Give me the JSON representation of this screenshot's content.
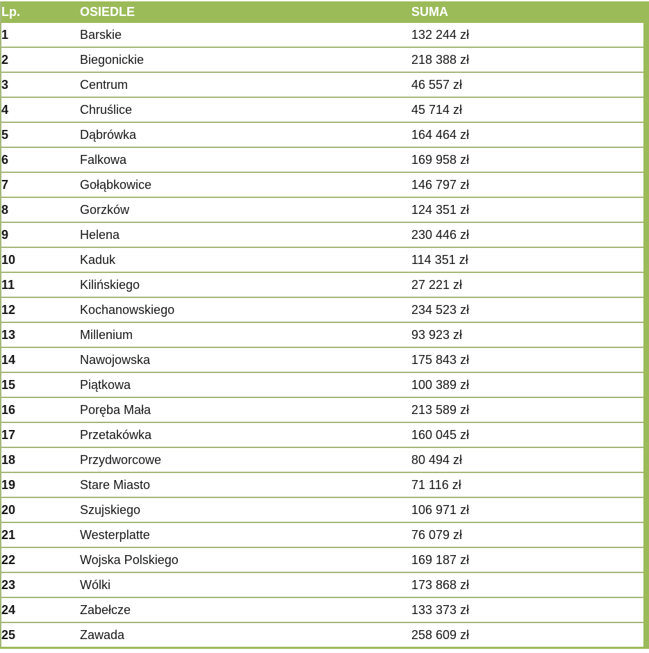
{
  "colors": {
    "header_bg": "#9bbb59",
    "header_text": "#ffffff",
    "row_separator": "#a5b87a",
    "right_bar": "#9bbb59",
    "cell_text": "#161616",
    "background": "#ffffff"
  },
  "table": {
    "columns": [
      "Lp.",
      "OSIEDLE",
      "SUMA"
    ],
    "rows": [
      {
        "lp": "1",
        "osiedle": "Barskie",
        "suma": "132 244 zł"
      },
      {
        "lp": "2",
        "osiedle": "Biegonickie",
        "suma": "218 388 zł"
      },
      {
        "lp": "3",
        "osiedle": "Centrum",
        "suma": "46 557 zł"
      },
      {
        "lp": "4",
        "osiedle": "Chruślice",
        "suma": "45 714 zł"
      },
      {
        "lp": "5",
        "osiedle": "Dąbrówka",
        "suma": "164 464 zł"
      },
      {
        "lp": "6",
        "osiedle": "Falkowa",
        "suma": "169 958 zł"
      },
      {
        "lp": "7",
        "osiedle": "Gołąbkowice",
        "suma": "146 797 zł"
      },
      {
        "lp": "8",
        "osiedle": "Gorzków",
        "suma": "124 351 zł"
      },
      {
        "lp": "9",
        "osiedle": "Helena",
        "suma": "230 446 zł"
      },
      {
        "lp": "10",
        "osiedle": "Kaduk",
        "suma": "114 351 zł"
      },
      {
        "lp": "11",
        "osiedle": "Kilińskiego",
        "suma": "27 221 zł"
      },
      {
        "lp": "12",
        "osiedle": "Kochanowskiego",
        "suma": "234 523 zł"
      },
      {
        "lp": "13",
        "osiedle": "Millenium",
        "suma": "93 923 zł"
      },
      {
        "lp": "14",
        "osiedle": "Nawojowska",
        "suma": "175 843 zł"
      },
      {
        "lp": "15",
        "osiedle": "Piątkowa",
        "suma": "100 389 zł"
      },
      {
        "lp": "16",
        "osiedle": "Poręba Mała",
        "suma": "213 589 zł"
      },
      {
        "lp": "17",
        "osiedle": "Przetakówka",
        "suma": "160 045 zł"
      },
      {
        "lp": "18",
        "osiedle": "Przydworcowe",
        "suma": "80 494 zł"
      },
      {
        "lp": "19",
        "osiedle": "Stare Miasto",
        "suma": "71 116 zł"
      },
      {
        "lp": "20",
        "osiedle": "Szujskiego",
        "suma": "106 971 zł"
      },
      {
        "lp": "21",
        "osiedle": "Westerplatte",
        "suma": "76 079 zł"
      },
      {
        "lp": "22",
        "osiedle": "Wojska Polskiego",
        "suma": "169 187 zł"
      },
      {
        "lp": "23",
        "osiedle": "Wólki",
        "suma": "173 868 zł"
      },
      {
        "lp": "24",
        "osiedle": "Zabełcze",
        "suma": "133 373 zł"
      },
      {
        "lp": "25",
        "osiedle": "Zawada",
        "suma": "258 609 zł"
      }
    ]
  },
  "chart_data": {
    "type": "table",
    "title": "",
    "columns": [
      "Lp.",
      "OSIEDLE",
      "SUMA"
    ],
    "rows": [
      [
        "1",
        "Barskie",
        "132 244 zł"
      ],
      [
        "2",
        "Biegonickie",
        "218 388 zł"
      ],
      [
        "3",
        "Centrum",
        "46 557 zł"
      ],
      [
        "4",
        "Chruślice",
        "45 714 zł"
      ],
      [
        "5",
        "Dąbrówka",
        "164 464 zł"
      ],
      [
        "6",
        "Falkowa",
        "169 958 zł"
      ],
      [
        "7",
        "Gołąbkowice",
        "146 797 zł"
      ],
      [
        "8",
        "Gorzków",
        "124 351 zł"
      ],
      [
        "9",
        "Helena",
        "230 446 zł"
      ],
      [
        "10",
        "Kaduk",
        "114 351 zł"
      ],
      [
        "11",
        "Kilińskiego",
        "27 221 zł"
      ],
      [
        "12",
        "Kochanowskiego",
        "234 523 zł"
      ],
      [
        "13",
        "Millenium",
        "93 923 zł"
      ],
      [
        "14",
        "Nawojowska",
        "175 843 zł"
      ],
      [
        "15",
        "Piątkowa",
        "100 389 zł"
      ],
      [
        "16",
        "Poręba Mała",
        "213 589 zł"
      ],
      [
        "17",
        "Przetakówka",
        "160 045 zł"
      ],
      [
        "18",
        "Przydworcowe",
        "80 494 zł"
      ],
      [
        "19",
        "Stare Miasto",
        "71 116 zł"
      ],
      [
        "20",
        "Szujskiego",
        "106 971 zł"
      ],
      [
        "21",
        "Westerplatte",
        "76 079 zł"
      ],
      [
        "22",
        "Wojska Polskiego",
        "169 187 zł"
      ],
      [
        "23",
        "Wólki",
        "173 868 zł"
      ],
      [
        "24",
        "Zabełcze",
        "133 373 zł"
      ],
      [
        "25",
        "Zawada",
        "258 609 zł"
      ]
    ],
    "values_numeric_pln": [
      132244,
      218388,
      46557,
      45714,
      164464,
      169958,
      146797,
      124351,
      230446,
      114351,
      27221,
      234523,
      93923,
      175843,
      100389,
      213589,
      160045,
      80494,
      71116,
      106971,
      76079,
      169187,
      173868,
      133373,
      258609
    ]
  }
}
